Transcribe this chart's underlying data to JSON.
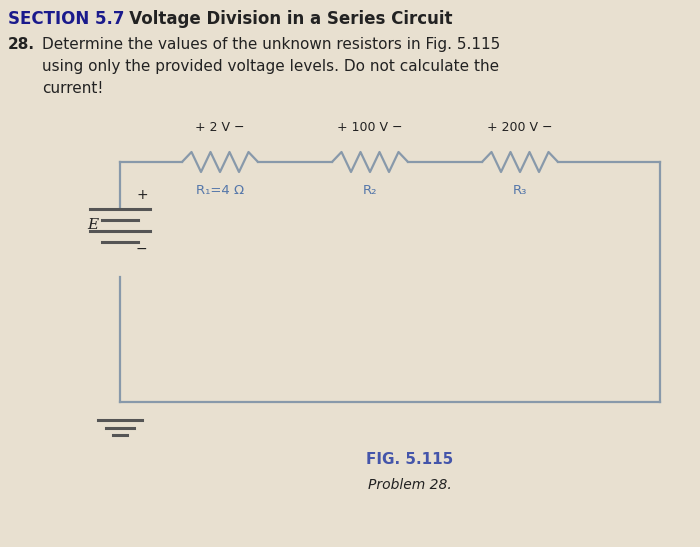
{
  "bg_color": "#e8e0d0",
  "title_section": "SECTION 5.7",
  "title_rest": "   Voltage Division in a Series Circuit",
  "problem_number": "28.",
  "prob_line1": "Determine the values of the unknown resistors in Fig. 5.115",
  "prob_line2": "using only the provided voltage levels. Do not calculate the",
  "prob_line3": "current!",
  "fig_label": "FIG. 5.115",
  "fig_sublabel": "Problem 28.",
  "wire_color": "#8899aa",
  "battery_color": "#555555",
  "text_color": "#222222",
  "section_color": "#1a1a8c",
  "fig_label_color": "#4455aa",
  "resistor_label_color": "#5577aa",
  "voltage_labels": [
    "+ 2 V −",
    "+ 100 V −",
    "+ 200 V −"
  ],
  "resistor_labels": [
    "R₁=4 Ω",
    "R₂",
    "R₃"
  ],
  "source_label": "E"
}
